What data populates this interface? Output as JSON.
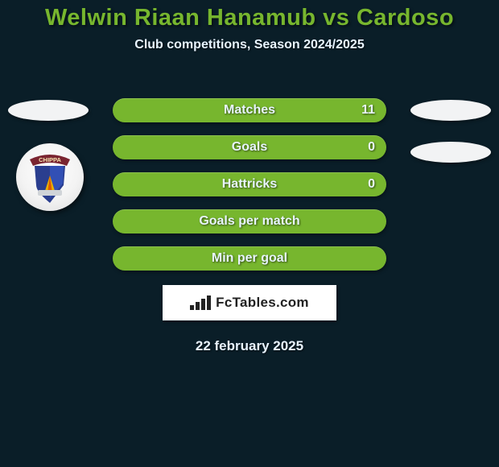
{
  "title": {
    "text": "Welwin Riaan Hanamub vs Cardoso",
    "color": "#77b62e",
    "fontsize": 29
  },
  "subtitle": {
    "text": "Club competitions, Season 2024/2025",
    "color": "#e8f4ff",
    "fontsize": 16
  },
  "background_color": "#0a1e28",
  "rows": [
    {
      "label": "Matches",
      "value": "11",
      "has_value": true,
      "fill": "#77b62e",
      "label_fontsize": 16
    },
    {
      "label": "Goals",
      "value": "0",
      "has_value": true,
      "fill": "#77b62e",
      "label_fontsize": 16
    },
    {
      "label": "Hattricks",
      "value": "0",
      "has_value": true,
      "fill": "#77b62e",
      "label_fontsize": 16
    },
    {
      "label": "Goals per match",
      "value": "",
      "has_value": false,
      "fill": "#77b62e",
      "label_fontsize": 16
    },
    {
      "label": "Min per goal",
      "value": "",
      "has_value": false,
      "fill": "#77b62e",
      "label_fontsize": 16
    }
  ],
  "markers": {
    "left": {
      "top_row": 0,
      "color": "#f2f3f4"
    },
    "right": [
      {
        "top_row": 0,
        "color": "#f2f3f4"
      },
      {
        "top_row": 1,
        "color": "#f2f3f4"
      }
    ]
  },
  "left_badge": {
    "top_row": 1,
    "circle_bg": "#f3f3f3",
    "crest_banner_color": "#7a2430",
    "crest_shield_color": "#2a3e8f",
    "crest_text": "CHIPPA"
  },
  "brand": {
    "text": "FcTables.com",
    "text_color": "#222222",
    "fontsize": 17,
    "box_bg": "#ffffff"
  },
  "date": {
    "text": "22 february 2025",
    "color": "#e8f4ff",
    "fontsize": 17
  }
}
